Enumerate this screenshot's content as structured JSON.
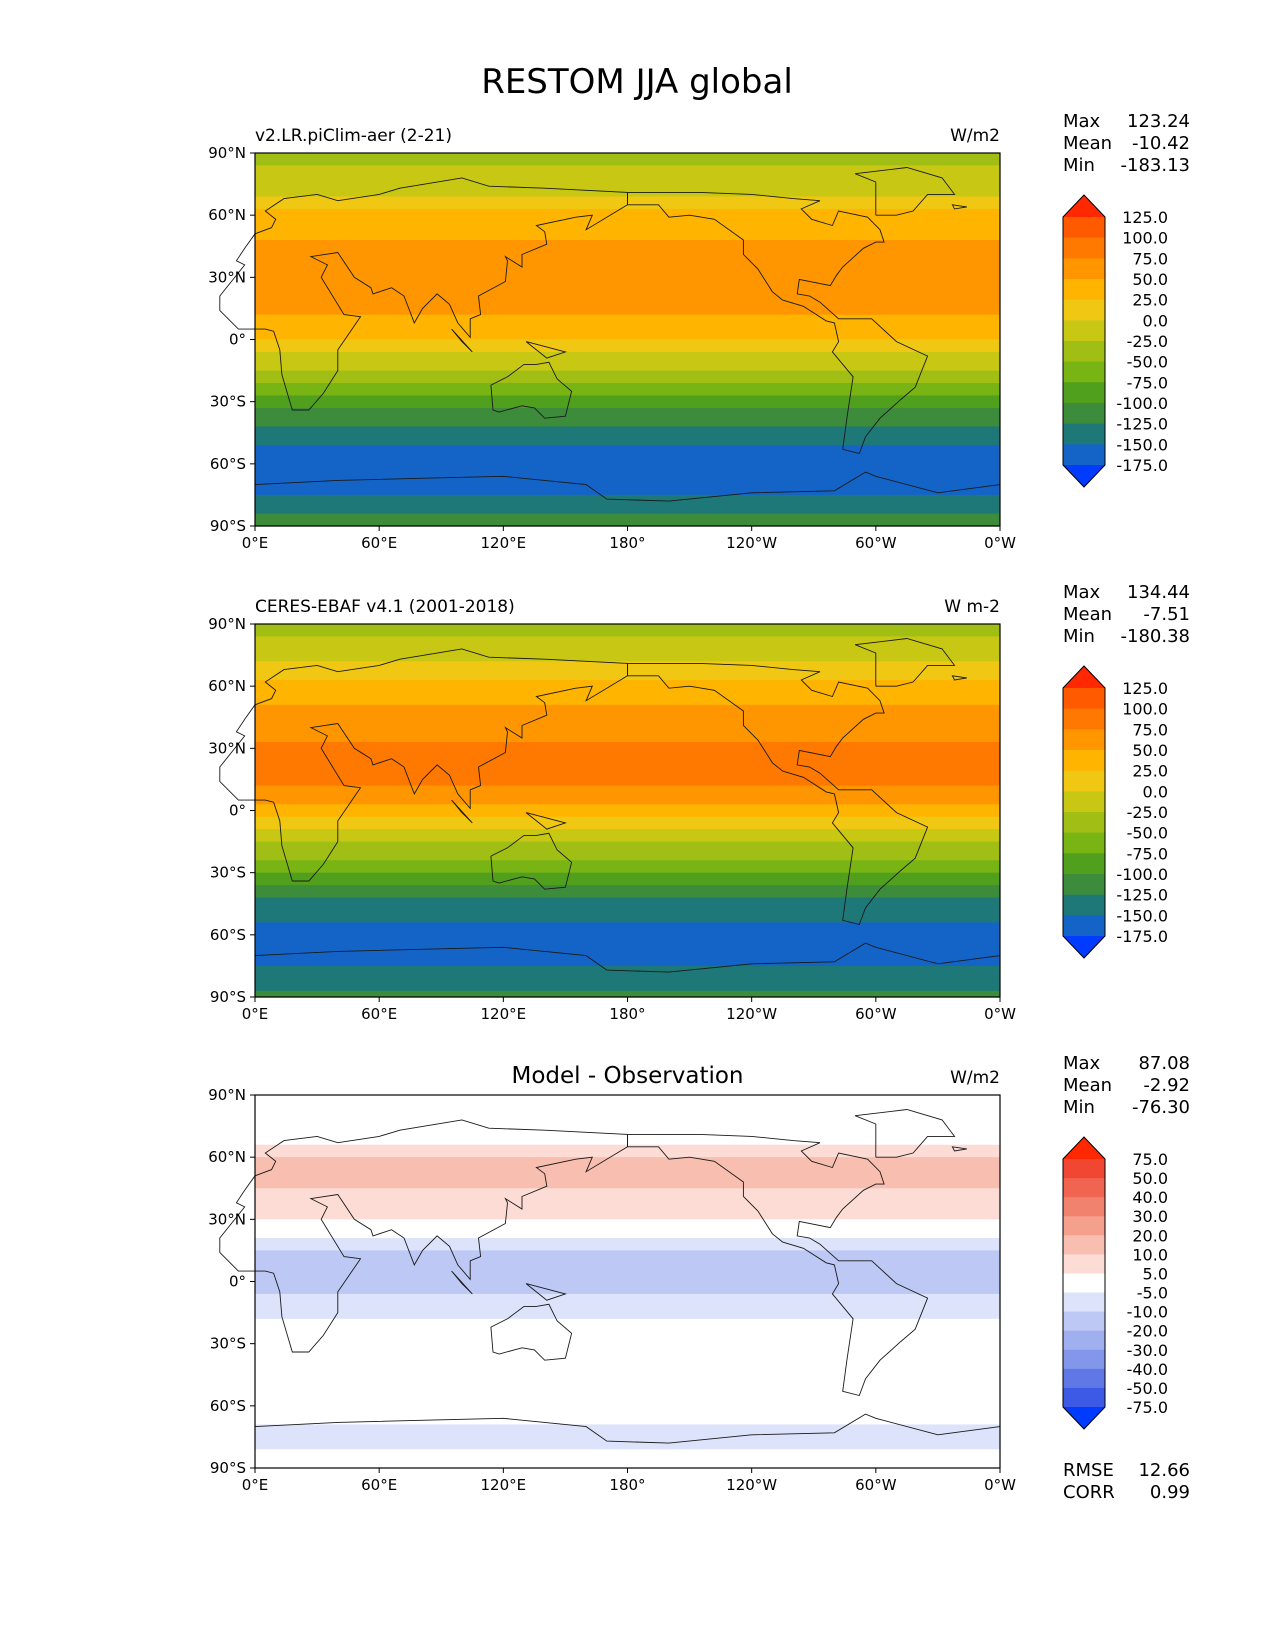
{
  "figure": {
    "title": "RESTOM JJA global",
    "lon_ticks": [
      "0°E",
      "60°E",
      "120°E",
      "180°",
      "120°W",
      "60°W",
      "0°W"
    ],
    "lat_ticks": [
      "90°N",
      "60°N",
      "30°N",
      "0°",
      "30°S",
      "60°S",
      "90°S"
    ]
  },
  "chart_data": [
    {
      "type": "heatmap",
      "left_title": "v2.LR.piClim-aer (2-21)",
      "center_title": "",
      "units": "W/m2",
      "stats": [
        {
          "label": "Max",
          "value": "123.24"
        },
        {
          "label": "Mean",
          "value": "-10.42"
        },
        {
          "label": "Min",
          "value": "-183.13"
        }
      ],
      "colorbar": {
        "levels": [
          "125.0",
          "100.0",
          "75.0",
          "50.0",
          "25.0",
          "0.0",
          "-25.0",
          "-50.0",
          "-75.0",
          "-100.0",
          "-125.0",
          "-150.0",
          "-175.0"
        ],
        "colors": [
          "#ff2800",
          "#ff5a00",
          "#ff7800",
          "#ff9600",
          "#ffb400",
          "#f0c814",
          "#c8c814",
          "#a0be14",
          "#78b414",
          "#50a01e",
          "#3c8c3c",
          "#1e7878",
          "#1464c8",
          "#003cff"
        ]
      },
      "zonal_profile": {
        "lat": [
          90,
          75,
          60,
          45,
          30,
          15,
          0,
          -15,
          -30,
          -45,
          -60,
          -75,
          -90
        ],
        "value": [
          -30,
          -20,
          30,
          55,
          70,
          60,
          25,
          -30,
          -90,
          -140,
          -170,
          -150,
          -110
        ]
      }
    },
    {
      "type": "heatmap",
      "left_title": "CERES-EBAF v4.1 (2001-2018)",
      "center_title": "",
      "units": "W m-2",
      "stats": [
        {
          "label": "Max",
          "value": "134.44"
        },
        {
          "label": "Mean",
          "value": "-7.51"
        },
        {
          "label": "Min",
          "value": "-180.38"
        }
      ],
      "colorbar": {
        "levels": [
          "125.0",
          "100.0",
          "75.0",
          "50.0",
          "25.0",
          "0.0",
          "-25.0",
          "-50.0",
          "-75.0",
          "-100.0",
          "-125.0",
          "-150.0",
          "-175.0"
        ],
        "colors": [
          "#ff2800",
          "#ff5a00",
          "#ff7800",
          "#ff9600",
          "#ffb400",
          "#f0c814",
          "#c8c814",
          "#a0be14",
          "#78b414",
          "#50a01e",
          "#3c8c3c",
          "#1e7878",
          "#1464c8",
          "#003cff"
        ]
      },
      "zonal_profile": {
        "lat": [
          90,
          75,
          60,
          45,
          30,
          15,
          0,
          -15,
          -30,
          -45,
          -60,
          -75,
          -90
        ],
        "value": [
          -30,
          -15,
          35,
          60,
          80,
          80,
          40,
          -20,
          -80,
          -135,
          -165,
          -150,
          -115
        ]
      }
    },
    {
      "type": "heatmap",
      "left_title": "",
      "center_title": "Model - Observation",
      "units": "W/m2",
      "stats": [
        {
          "label": "Max",
          "value": "87.08"
        },
        {
          "label": "Mean",
          "value": "-2.92"
        },
        {
          "label": "Min",
          "value": "-76.30"
        }
      ],
      "colorbar": {
        "levels": [
          "75.0",
          "50.0",
          "40.0",
          "30.0",
          "20.0",
          "10.0",
          "5.0",
          "-5.0",
          "-10.0",
          "-20.0",
          "-30.0",
          "-40.0",
          "-50.0",
          "-75.0"
        ],
        "colors": [
          "#ff2800",
          "#f04632",
          "#f06450",
          "#f0826e",
          "#f5a08c",
          "#f8beb0",
          "#fcdcd4",
          "#ffffff",
          "#dce3fa",
          "#bec8f5",
          "#a0aff0",
          "#8296ea",
          "#5f78e6",
          "#3c5ae6",
          "#003cff"
        ]
      },
      "zonal_profile": {
        "lat": [
          90,
          75,
          60,
          45,
          30,
          15,
          0,
          -15,
          -30,
          -45,
          -60,
          -75,
          -90
        ],
        "value": [
          0,
          -5,
          10,
          10,
          5,
          -10,
          -12,
          -6,
          0,
          0,
          0,
          -10,
          0
        ]
      },
      "footer_stats": [
        {
          "label": "RMSE",
          "value": "12.66"
        },
        {
          "label": "CORR",
          "value": "0.99"
        }
      ]
    }
  ]
}
